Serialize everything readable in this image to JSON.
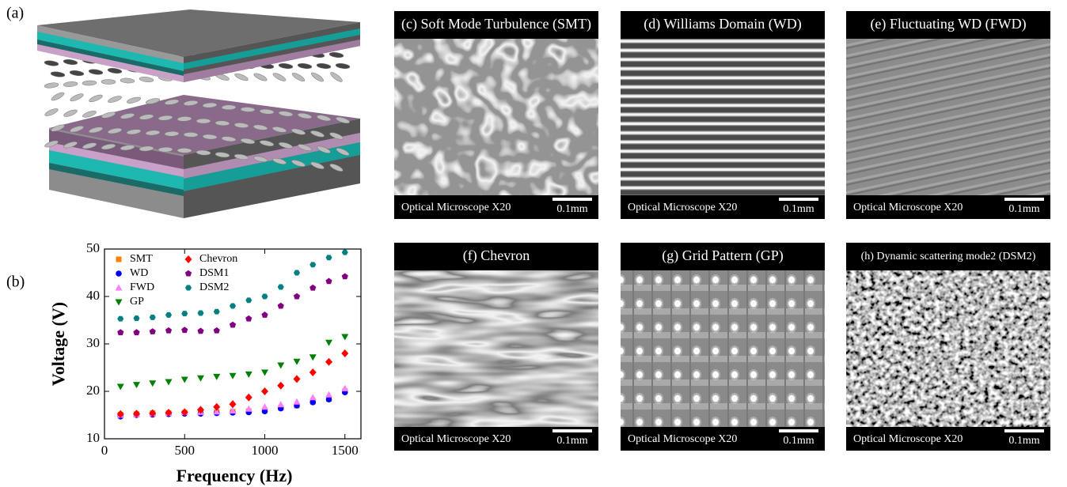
{
  "panel_labels": [
    "(a)",
    "(b)"
  ],
  "chart_data": {
    "type": "scatter",
    "x_label": "Frequency (Hz)",
    "y_label": "Voltage (V)",
    "x": [
      100,
      200,
      300,
      400,
      500,
      600,
      700,
      800,
      900,
      1000,
      1100,
      1200,
      1300,
      1400,
      1500
    ],
    "series": [
      {
        "name": "SMT",
        "color": "#ff7f00",
        "marker": "square",
        "values": [
          15.1,
          15.2,
          15.4,
          15.4,
          15.5,
          15.5,
          15.6,
          15.7,
          15.8,
          16,
          16.5,
          17,
          17.8,
          18.4,
          20
        ]
      },
      {
        "name": "WD",
        "color": "#0000ff",
        "marker": "circle",
        "values": [
          14.7,
          15,
          15.1,
          15.2,
          15.3,
          15.3,
          15.4,
          15.5,
          15.6,
          15.8,
          16.4,
          17,
          17.7,
          18.3,
          19.8
        ]
      },
      {
        "name": "FWD",
        "color": "#ff7fff",
        "marker": "triangle-up",
        "values": [
          15,
          15.1,
          15.3,
          15.4,
          15.6,
          15.6,
          15.7,
          15.9,
          16.3,
          16.7,
          17.2,
          17.8,
          18.7,
          19.3,
          20.6
        ]
      },
      {
        "name": "GP",
        "color": "#008000",
        "marker": "triangle-down",
        "values": [
          21,
          21.4,
          21.7,
          22,
          22.5,
          22.8,
          23.1,
          23.3,
          23.6,
          24,
          25.5,
          26.3,
          27.2,
          30.3,
          31.5
        ]
      },
      {
        "name": "Chevron",
        "color": "#ff0000",
        "marker": "diamond",
        "values": [
          15.2,
          15.3,
          15.4,
          15.5,
          15.6,
          16.1,
          16.7,
          17.3,
          18.7,
          20,
          21.2,
          22.6,
          24,
          26.2,
          28
        ]
      },
      {
        "name": "DSM1",
        "color": "#800080",
        "marker": "pentagon",
        "values": [
          32.4,
          32.4,
          32.6,
          32.8,
          32.9,
          32.7,
          32.8,
          34,
          35.3,
          36.1,
          38,
          40,
          41.8,
          43.2,
          44.2
        ]
      },
      {
        "name": "DSM2",
        "color": "#008080",
        "marker": "hexagon",
        "values": [
          35.3,
          35.4,
          35.6,
          36.1,
          36.4,
          36.5,
          36.8,
          38,
          39.2,
          40,
          42,
          45,
          46.7,
          48.2,
          49.3
        ]
      }
    ],
    "xlim": [
      0,
      1600
    ],
    "ylim": [
      10,
      50
    ],
    "xticks": [
      0,
      500,
      1000,
      1500
    ],
    "yticks": [
      10,
      20,
      30,
      40,
      50
    ],
    "grid": false,
    "legend": "upper left"
  },
  "micrographs": [
    {
      "title": "(c) Soft Mode Turbulence (SMT)",
      "caption": "Optical Microscope X20",
      "scale_bar": "0.1mm"
    },
    {
      "title": "(d) Williams Domain (WD)",
      "caption": "Optical Microscope X20",
      "scale_bar": "0.1mm"
    },
    {
      "title": "(e) Fluctuating WD (FWD)",
      "caption": "Optical Microscope X20",
      "scale_bar": "0.1mm"
    },
    {
      "title": "(f) Chevron",
      "caption": "Optical Microscope X20",
      "scale_bar": "0.1mm"
    },
    {
      "title": "(g) Grid Pattern (GP)",
      "caption": "Optical Microscope X20",
      "scale_bar": "0.1mm"
    },
    {
      "title": "(h) Dynamic scattering mode2 (DSM2)",
      "caption": "Optical Microscope X20",
      "scale_bar": "0.1mm"
    }
  ]
}
